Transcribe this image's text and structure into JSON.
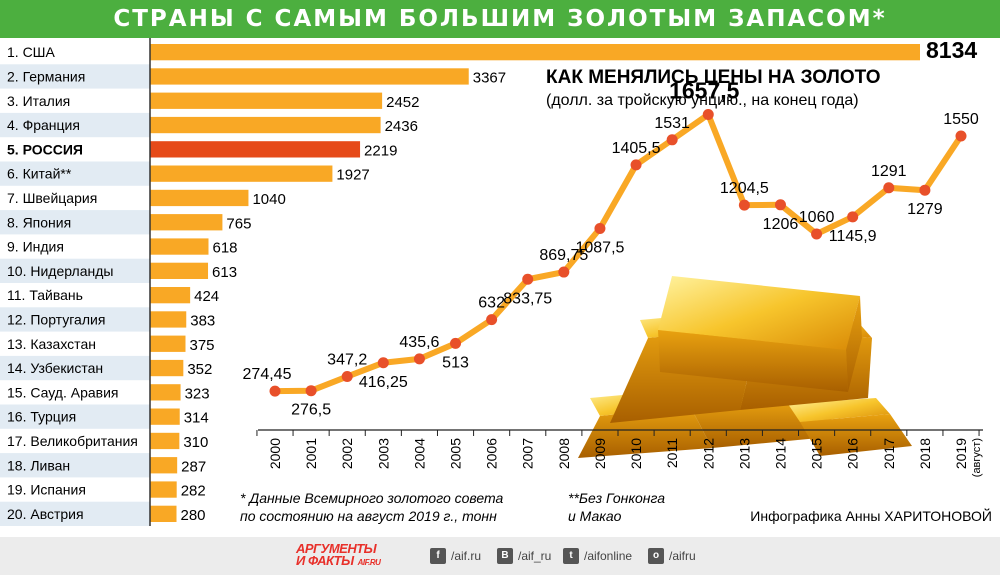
{
  "title": "СТРАНЫ С САМЫМ БОЛЬШИМ ЗОЛОТЫМ ЗАПАСОМ*",
  "chart_data": [
    {
      "type": "bar",
      "orientation": "horizontal",
      "categories": [
        "1. США",
        "2. Германия",
        "3. Италия",
        "4. Франция",
        "5. РОССИЯ",
        "6. Китай**",
        "7. Швейцария",
        "8. Япония",
        "9. Индия",
        "10. Нидерланды",
        "11. Тайвань",
        "12. Португалия",
        "13. Казахстан",
        "14. Узбекистан",
        "15. Сауд. Аравия",
        "16. Турция",
        "17. Великобритания",
        "18. Ливан",
        "19. Испания",
        "20. Австрия"
      ],
      "values": [
        8134,
        3367,
        2452,
        2436,
        2219,
        1927,
        1040,
        765,
        618,
        613,
        424,
        383,
        375,
        352,
        323,
        314,
        310,
        287,
        282,
        280
      ],
      "value_labels": [
        "8134",
        "3367",
        "2452",
        "2436",
        "2219",
        "1927",
        "1040",
        "765",
        "618",
        "613",
        "424",
        "383",
        "375",
        "352",
        "323",
        "314",
        "310",
        "287",
        "282",
        "280"
      ],
      "highlight_index": 4,
      "bar_color": "#f9a825",
      "highlight_color": "#e64a19"
    },
    {
      "type": "line",
      "title": "КАК МЕНЯЛИСЬ ЦЕНЫ НА ЗОЛОТО",
      "subtitle": "(долл. за тройскую унцию., на конец года)",
      "x": [
        "2000",
        "2001",
        "2002",
        "2003",
        "2004",
        "2005",
        "2006",
        "2007",
        "2008",
        "2009",
        "2010",
        "2011",
        "2012",
        "2013",
        "2014",
        "2015",
        "2016",
        "2017",
        "2018",
        "2019"
      ],
      "x_note": "(август)",
      "values": [
        274.45,
        276.5,
        347.2,
        416.25,
        435.6,
        513,
        632,
        833.75,
        869.75,
        1087.5,
        1405.5,
        1531,
        1657.5,
        1204.5,
        1206,
        1060,
        1145.9,
        1291,
        1279,
        1550
      ],
      "value_labels": [
        "274,45",
        "276,5",
        "347,2",
        "416,25",
        "435,6",
        "513",
        "632",
        "833,75",
        "869,75",
        "1087,5",
        "1405,5",
        "1531",
        "1657,5",
        "1204,5",
        "1206",
        "1060",
        "1145,9",
        "1291",
        "1279",
        "1550"
      ],
      "line_color": "#f9a825",
      "marker_color": "#e8502a"
    }
  ],
  "notes": {
    "note1_line1": "* Данные Всемирного золотого совета",
    "note1_line2": "по состоянию на август 2019 г., тонн",
    "note2_line1": "**Без Гонконга",
    "note2_line2": "и Макао",
    "credit": "Инфографика Анны ХАРИТОНОВОЙ"
  },
  "footer": {
    "logo_line1": "АРГУМЕНТЫ",
    "logo_line2": "И ФАКТЫ",
    "logo_url": "AIF.RU",
    "social": [
      {
        "icon": "facebook-icon",
        "glyph": "f",
        "label": "/aif.ru"
      },
      {
        "icon": "vk-icon",
        "glyph": "В",
        "label": "/aif_ru"
      },
      {
        "icon": "twitter-icon",
        "glyph": "t",
        "label": "/aifonline"
      },
      {
        "icon": "odnoklassniki-icon",
        "glyph": "о",
        "label": "/aifru"
      }
    ]
  }
}
